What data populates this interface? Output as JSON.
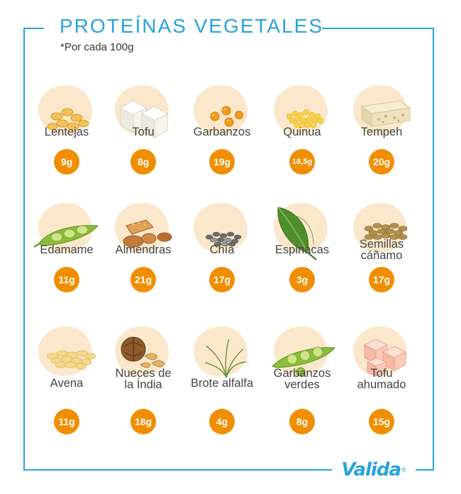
{
  "header": {
    "title": "PROTEÍNAS VEGETALES",
    "subtitle": "*Por cada 100g"
  },
  "colors": {
    "frame": "#29a3dd",
    "badge": "#f18e00",
    "blob": "#fbe8cc"
  },
  "items": [
    {
      "name": "Lentejas",
      "value": "9g",
      "icon": "lentils-icon"
    },
    {
      "name": "Tofu",
      "value": "8g",
      "icon": "tofu-icon"
    },
    {
      "name": "Garbanzos",
      "value": "19g",
      "icon": "chickpeas-icon"
    },
    {
      "name": "Quinua",
      "value": "16,5g",
      "icon": "quinoa-icon"
    },
    {
      "name": "Tempeh",
      "value": "20g",
      "icon": "tempeh-icon"
    },
    {
      "name": "Edamame",
      "value": "11g",
      "icon": "edamame-icon"
    },
    {
      "name": "Almendras",
      "value": "21g",
      "icon": "almonds-icon"
    },
    {
      "name": "Chía",
      "value": "17g",
      "icon": "chia-icon"
    },
    {
      "name": "Espinacas",
      "value": "3g",
      "icon": "spinach-icon"
    },
    {
      "name": "Semillas\ncáñamo",
      "value": "17g",
      "icon": "hemp-seeds-icon"
    },
    {
      "name": "Avena",
      "value": "11g",
      "icon": "oats-icon"
    },
    {
      "name": "Nueces de\nla Índia",
      "value": "18g",
      "icon": "cashews-icon"
    },
    {
      "name": "Brote alfalfa",
      "value": "4g",
      "icon": "alfalfa-sprouts-icon"
    },
    {
      "name": "Garbanzos\nverdes",
      "value": "8g",
      "icon": "green-chickpeas-icon"
    },
    {
      "name": "Tofu\nahumado",
      "value": "15g",
      "icon": "smoked-tofu-icon"
    }
  ],
  "logo": {
    "text": "Valida",
    "mark": "®"
  }
}
